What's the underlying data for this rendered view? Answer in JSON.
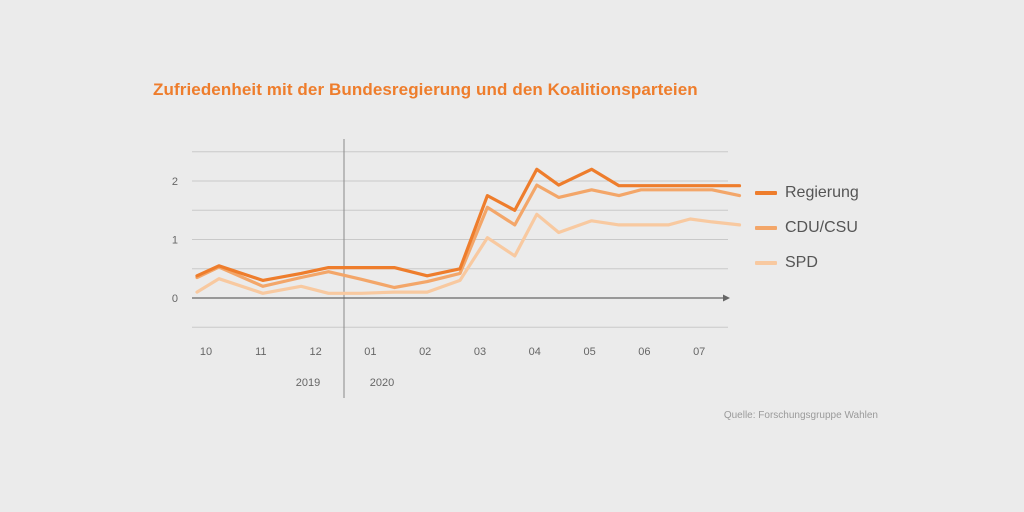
{
  "title": "Zufriedenheit mit der Bundesregierung und den Koalitionsparteien",
  "source": "Quelle: Forschungsgruppe Wahlen",
  "colors": {
    "regierung": "#ee7d2c",
    "cdu": "#f3a669",
    "spd": "#f8c9a0",
    "grid": "#c9c9c9",
    "axis": "#666666",
    "text": "#666666"
  },
  "chart_data": {
    "type": "line",
    "title": "Zufriedenheit mit der Bundesregierung und den Koalitionsparteien",
    "y_ticks": [
      "0",
      "1",
      "2"
    ],
    "ylim": [
      -0.5,
      2.5
    ],
    "x_month_labels": [
      "10",
      "11",
      "12",
      "01",
      "02",
      "03",
      "04",
      "05",
      "06",
      "07"
    ],
    "year_labels": [
      "2019",
      "2020"
    ],
    "x": [
      9.6,
      10.0,
      10.8,
      11.5,
      12.0,
      12.6,
      13.2,
      13.8,
      14.4,
      14.9,
      15.4,
      15.8,
      16.2,
      16.8,
      17.3,
      17.7,
      18.2,
      18.6,
      19.0,
      19.5
    ],
    "series": [
      {
        "name": "Regierung",
        "key": "regierung",
        "values": [
          0.38,
          0.55,
          0.3,
          0.42,
          0.52,
          0.52,
          0.52,
          0.38,
          0.5,
          1.75,
          1.5,
          2.2,
          1.93,
          2.2,
          1.92,
          1.92,
          1.92,
          1.92,
          1.92,
          1.92
        ]
      },
      {
        "name": "CDU/CSU",
        "key": "cdu",
        "values": [
          0.35,
          0.53,
          0.2,
          0.35,
          0.45,
          0.32,
          0.18,
          0.28,
          0.42,
          1.55,
          1.25,
          1.93,
          1.72,
          1.85,
          1.75,
          1.85,
          1.85,
          1.85,
          1.85,
          1.75
        ]
      },
      {
        "name": "SPD",
        "key": "spd",
        "values": [
          0.1,
          0.33,
          0.08,
          0.2,
          0.08,
          0.08,
          0.1,
          0.1,
          0.3,
          1.03,
          0.72,
          1.43,
          1.12,
          1.32,
          1.25,
          1.25,
          1.25,
          1.35,
          1.3,
          1.25
        ]
      }
    ],
    "grid": true,
    "legend_position": "right"
  }
}
